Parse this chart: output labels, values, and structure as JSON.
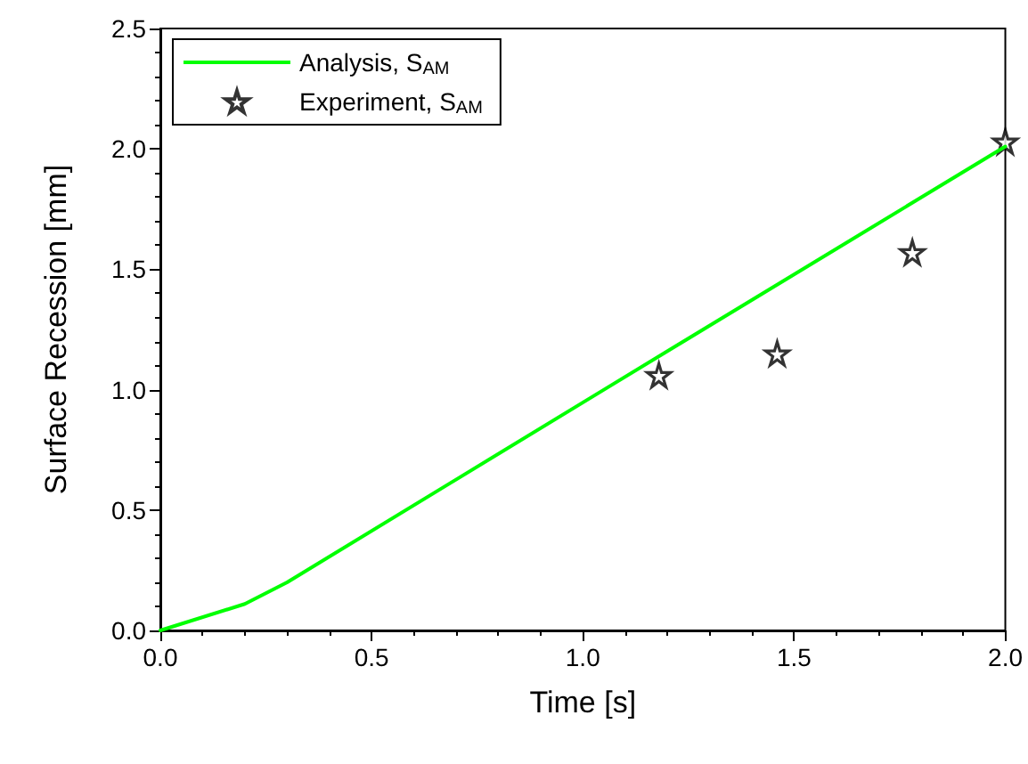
{
  "chart_data": {
    "type": "line",
    "xlabel": "Time [s]",
    "ylabel": "Surface Recession [mm]",
    "xlim": [
      0,
      2
    ],
    "ylim": [
      0,
      2.5
    ],
    "xticks": [
      {
        "value": 0,
        "label": "0.0"
      },
      {
        "value": 0.5,
        "label": "0.5"
      },
      {
        "value": 1,
        "label": "1.0"
      },
      {
        "value": 1.5,
        "label": "1.5"
      },
      {
        "value": 2,
        "label": "2.0"
      }
    ],
    "yticks": [
      {
        "value": 0,
        "label": "0.0"
      },
      {
        "value": 0.5,
        "label": "0.5"
      },
      {
        "value": 1,
        "label": "1.0"
      },
      {
        "value": 1.5,
        "label": "1.5"
      },
      {
        "value": 2,
        "label": "2.0"
      },
      {
        "value": 2.5,
        "label": "2.5"
      }
    ],
    "grid": false,
    "legend": "top left",
    "series": [
      {
        "name": "Analysis, S$_{AM}$",
        "color": "#00ff00",
        "marker": "none",
        "line_style": "solid",
        "x": [
          0,
          0.2,
          0.3,
          1.05,
          2.0
        ],
        "values": [
          0,
          0.11,
          0.2,
          1.0,
          2.01
        ]
      },
      {
        "name": "Experiment, S$_{AM}$",
        "type": "scatter",
        "color": "#000000",
        "marker": "star",
        "x": [
          1.18,
          1.46,
          1.78,
          2.0
        ],
        "values": [
          1.06,
          1.15,
          1.57,
          2.03
        ]
      }
    ]
  }
}
